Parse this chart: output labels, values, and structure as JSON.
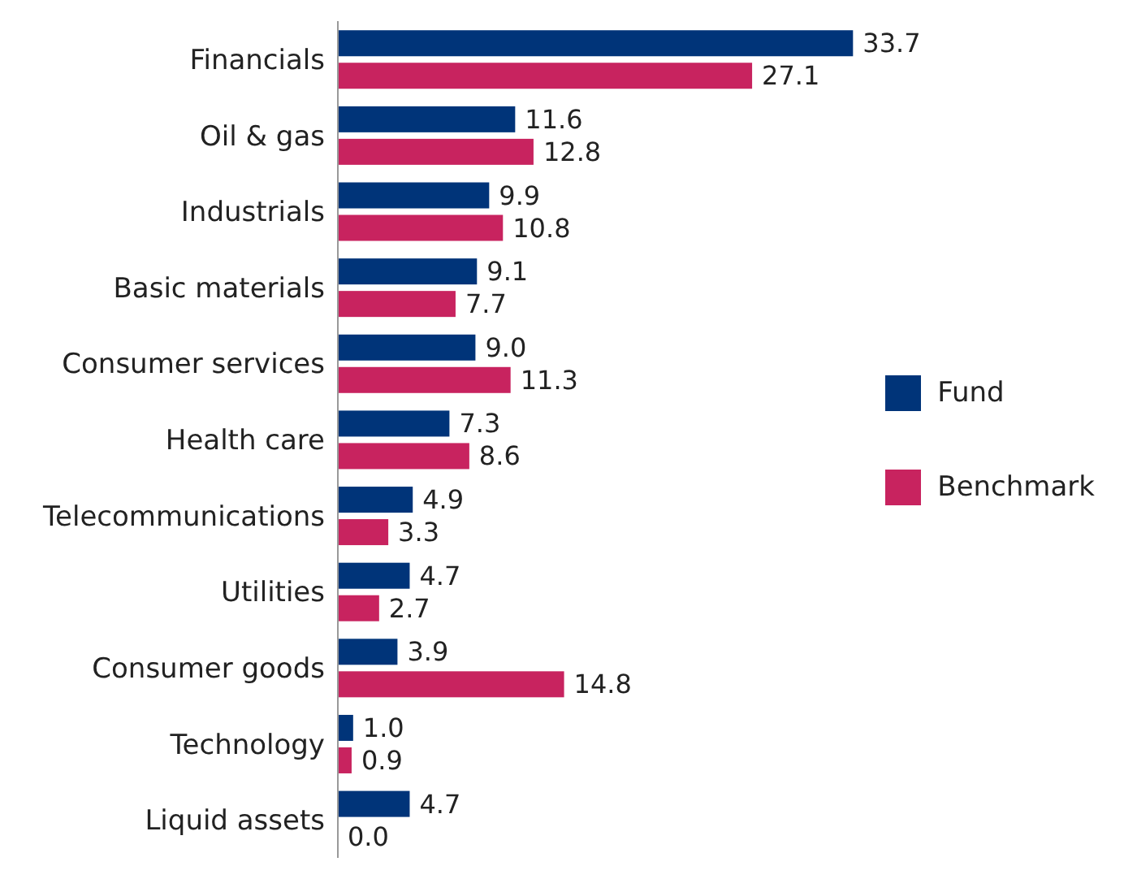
{
  "chart_data": {
    "type": "bar",
    "orientation": "horizontal",
    "categories": [
      "Financials",
      "Oil & gas",
      "Industrials",
      "Basic materials",
      "Consumer services",
      "Health care",
      "Telecommunications",
      "Utilities",
      "Consumer goods",
      "Technology",
      "Liquid assets"
    ],
    "series": [
      {
        "name": "Fund",
        "color": "#003479",
        "values": [
          33.7,
          11.6,
          9.9,
          9.1,
          9.0,
          7.3,
          4.9,
          4.7,
          3.9,
          1.0,
          4.7
        ],
        "value_labels": [
          "33.7",
          "11.6",
          "9.9",
          "9.1",
          "9.0",
          "7.3",
          "4.9",
          "4.7",
          "3.9",
          "1.0",
          "4.7"
        ]
      },
      {
        "name": "Benchmark",
        "color": "#c8235f",
        "values": [
          27.1,
          12.8,
          10.8,
          7.7,
          11.3,
          8.6,
          3.3,
          2.7,
          14.8,
          0.9,
          0
        ],
        "value_labels": [
          "27.1",
          "12.8",
          "10.8",
          "7.7",
          "11.3",
          "8.6",
          "3.3",
          "2.7",
          "14.8",
          "0.9",
          "0.0"
        ]
      }
    ],
    "legend": "right",
    "tick_labels": "y"
  }
}
